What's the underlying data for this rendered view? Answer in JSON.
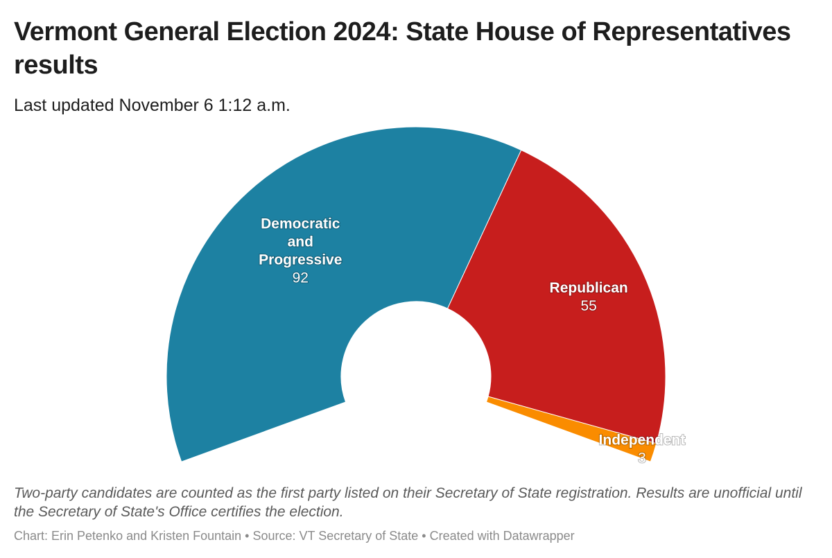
{
  "header": {
    "title": "Vermont General Election 2024: State House of Representatives results",
    "subtitle": "Last updated November 6 1:12 a.m."
  },
  "chart_data": {
    "type": "pie",
    "variant": "semi-donut (parliament arc)",
    "title": "Vermont General Election 2024: State House of Representatives results",
    "subtitle": "Last updated November 6 1:12 a.m.",
    "slices": [
      {
        "label": "Democratic and Progressive",
        "value": 92,
        "color": "#1d81a2"
      },
      {
        "label": "Republican",
        "value": 55,
        "color": "#c71e1d"
      },
      {
        "label": "Independent",
        "value": 3,
        "color": "#fa8c00"
      }
    ],
    "legend": "none (labels on slices)"
  },
  "footer": {
    "note": "Two-party candidates are counted as the first party listed on their Secretary of State registration. Results are unofficial until the Secretary of State's Office certifies the election.",
    "source": "Chart: Erin Petenko and Kristen Fountain • Source: VT Secretary of State • Created with Datawrapper"
  }
}
